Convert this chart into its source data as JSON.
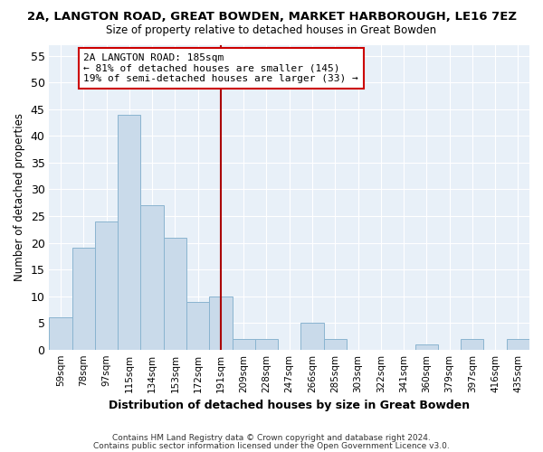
{
  "title": "2A, LANGTON ROAD, GREAT BOWDEN, MARKET HARBOROUGH, LE16 7EZ",
  "subtitle": "Size of property relative to detached houses in Great Bowden",
  "xlabel": "Distribution of detached houses by size in Great Bowden",
  "ylabel": "Number of detached properties",
  "categories": [
    "59sqm",
    "78sqm",
    "97sqm",
    "115sqm",
    "134sqm",
    "153sqm",
    "172sqm",
    "191sqm",
    "209sqm",
    "228sqm",
    "247sqm",
    "266sqm",
    "285sqm",
    "303sqm",
    "322sqm",
    "341sqm",
    "360sqm",
    "379sqm",
    "397sqm",
    "416sqm",
    "435sqm"
  ],
  "bar_heights": [
    6,
    19,
    24,
    44,
    27,
    21,
    9,
    10,
    2,
    2,
    0,
    5,
    2,
    0,
    0,
    0,
    1,
    0,
    2,
    0,
    2
  ],
  "bar_color": "#c9daea",
  "bar_edge_color": "#8ab4d0",
  "vline_index": 7,
  "vline_color": "#aa0000",
  "annotation_text": "2A LANGTON ROAD: 185sqm\n← 81% of detached houses are smaller (145)\n19% of semi-detached houses are larger (33) →",
  "annotation_box_color": "#ffffff",
  "annotation_box_edge": "#cc0000",
  "ylim": [
    0,
    57
  ],
  "yticks": [
    0,
    5,
    10,
    15,
    20,
    25,
    30,
    35,
    40,
    45,
    50,
    55
  ],
  "bg_color": "#e8f0f8",
  "grid_color": "#ffffff",
  "footer1": "Contains HM Land Registry data © Crown copyright and database right 2024.",
  "footer2": "Contains public sector information licensed under the Open Government Licence v3.0."
}
